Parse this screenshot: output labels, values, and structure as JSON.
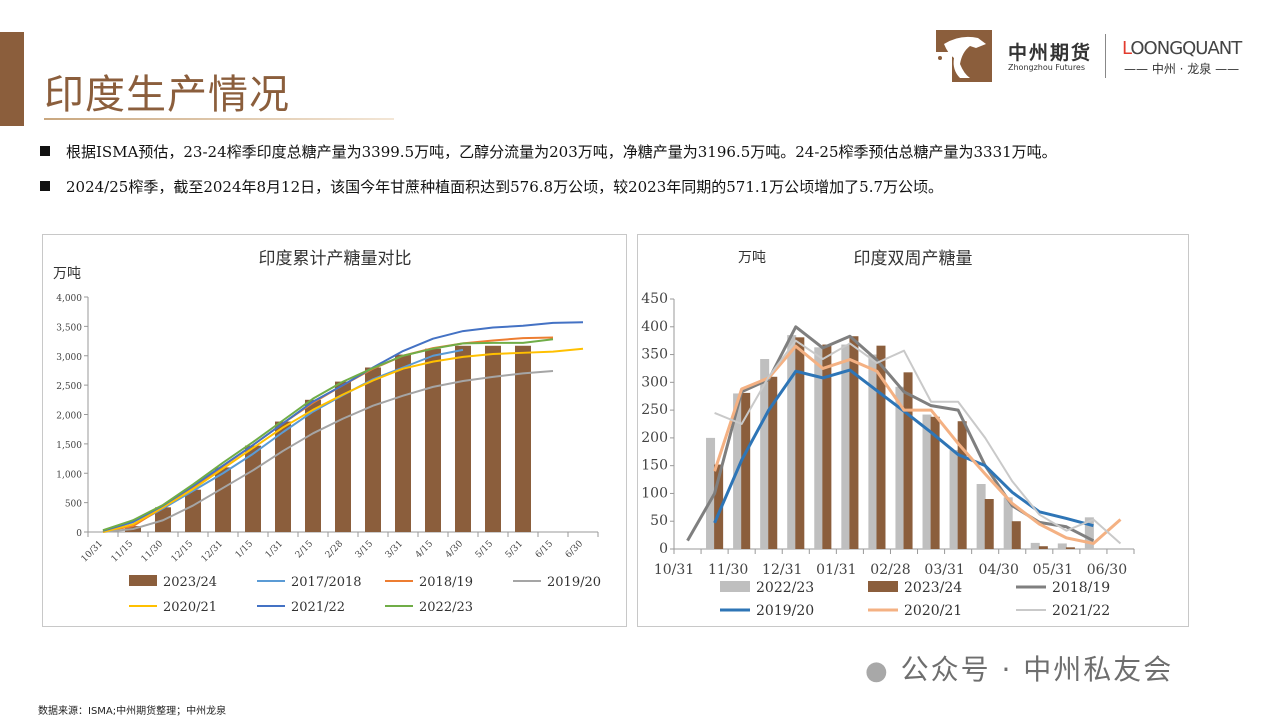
{
  "header": {
    "title": "印度生产情况",
    "logo_cn": "中州期货",
    "logo_en": "Zhongzhou Futures",
    "lq_name": "LOONGQUANT",
    "lq_sub": "—— 中州 · 龙泉 ——"
  },
  "bullets": [
    "根据ISMA预估，23-24榨季印度总糖产量为3399.5万吨，乙醇分流量为203万吨，净糖产量为3196.5万吨。24-25榨季预估总糖产量为3331万吨。",
    "2024/25榨季，截至2024年8月12日，该国今年甘蔗种植面积达到576.8万公顷，较2023年同期的571.1万公顷增加了5.7万公顷。"
  ],
  "footer": "数据来源：ISMA;中州期货整理；中州龙泉",
  "watermark": "公众号 · 中州私友会",
  "chart_data": [
    {
      "type": "bar+line",
      "title": "印度累计产糖量对比",
      "ylabel": "万吨",
      "ylim": [
        0,
        4000
      ],
      "yticks": [
        "0",
        "500",
        "1,000",
        "1,500",
        "2,000",
        "2,500",
        "3,000",
        "3,500",
        "4,000"
      ],
      "grid": false,
      "legend": "bottom",
      "categories": [
        "10/31",
        "11/15",
        "11/30",
        "12/15",
        "12/31",
        "1/15",
        "1/31",
        "2/15",
        "2/28",
        "3/15",
        "3/31",
        "4/15",
        "4/30",
        "5/15",
        "5/31",
        "6/15",
        "6/30"
      ],
      "series": [
        {
          "name": "2023/24",
          "kind": "bar",
          "color": "#8b5e3c",
          "values": [
            null,
            100,
            420,
            720,
            1100,
            1470,
            1880,
            2250,
            2560,
            2800,
            3020,
            3120,
            3170,
            3170,
            3170,
            null,
            null
          ]
        },
        {
          "name": "2017/2018",
          "kind": "line",
          "color": "#5b9bd5",
          "values": [
            30,
            120,
            400,
            700,
            1000,
            1330,
            1700,
            2050,
            2330,
            2600,
            2800,
            3000,
            3100,
            null,
            null,
            null,
            null
          ]
        },
        {
          "name": "2018/19",
          "kind": "line",
          "color": "#ed7d31",
          "values": [
            10,
            100,
            420,
            750,
            1120,
            1480,
            1850,
            2200,
            2500,
            2780,
            3000,
            3130,
            3210,
            3260,
            3300,
            3310,
            null
          ]
        },
        {
          "name": "2019/20",
          "kind": "line",
          "color": "#a5a5a5",
          "values": [
            0,
            50,
            200,
            450,
            750,
            1050,
            1380,
            1680,
            1930,
            2150,
            2320,
            2470,
            2570,
            2640,
            2700,
            2740,
            null
          ]
        },
        {
          "name": "2020/21",
          "kind": "line",
          "color": "#ffc000",
          "values": [
            0,
            130,
            420,
            730,
            1080,
            1430,
            1780,
            2080,
            2340,
            2580,
            2780,
            2900,
            2980,
            3030,
            3050,
            3070,
            3120
          ]
        },
        {
          "name": "2021/22",
          "kind": "line",
          "color": "#4472c4",
          "values": [
            20,
            170,
            450,
            780,
            1130,
            1480,
            1850,
            2220,
            2500,
            2800,
            3080,
            3290,
            3420,
            3480,
            3510,
            3560,
            3570
          ]
        },
        {
          "name": "2022/23",
          "kind": "line",
          "color": "#70ad47",
          "values": [
            30,
            200,
            460,
            810,
            1180,
            1530,
            1900,
            2270,
            2560,
            2790,
            3000,
            3120,
            3210,
            3220,
            3220,
            3280,
            null
          ]
        }
      ]
    },
    {
      "type": "bar+line",
      "title": "印度双周产糖量",
      "ylabel": "万吨",
      "ylim": [
        0,
        450
      ],
      "yticks": [
        "0",
        "50",
        "100",
        "150",
        "200",
        "250",
        "300",
        "350",
        "400",
        "450"
      ],
      "grid": false,
      "legend": "bottom",
      "xticks": [
        "10/31",
        "11/30",
        "12/31",
        "01/31",
        "02/28",
        "03/31",
        "04/30",
        "05/31",
        "06/30"
      ],
      "series": [
        {
          "name": "2022/23",
          "kind": "bar",
          "color": "#bfbfbf",
          "values": [
            null,
            200,
            280,
            342,
            385,
            363,
            368,
            350,
            292,
            242,
            178,
            117,
            93,
            11,
            10,
            57,
            null
          ]
        },
        {
          "name": "2023/24",
          "kind": "bar",
          "color": "#8b5e3c",
          "values": [
            null,
            152,
            281,
            310,
            381,
            368,
            383,
            366,
            318,
            238,
            230,
            90,
            50,
            5,
            3,
            null,
            null
          ]
        },
        {
          "name": "2018/19",
          "kind": "line",
          "color": "#7f7f7f",
          "width": 3,
          "values": [
            15,
            100,
            283,
            305,
            400,
            362,
            383,
            340,
            283,
            258,
            250,
            150,
            78,
            48,
            40,
            15,
            null
          ]
        },
        {
          "name": "2019/20",
          "kind": "line",
          "color": "#2e75b6",
          "width": 3,
          "values": [
            null,
            47,
            160,
            250,
            320,
            308,
            322,
            285,
            248,
            210,
            170,
            150,
            102,
            67,
            55,
            42,
            null
          ]
        },
        {
          "name": "2020/21",
          "kind": "line",
          "color": "#f4b183",
          "width": 3,
          "values": [
            null,
            140,
            288,
            308,
            365,
            325,
            341,
            320,
            250,
            250,
            190,
            135,
            82,
            45,
            20,
            10,
            53
          ]
        },
        {
          "name": "2021/22",
          "kind": "line",
          "color": "#c9c9c9",
          "width": 2,
          "values": [
            null,
            245,
            225,
            310,
            375,
            342,
            370,
            335,
            357,
            265,
            265,
            200,
            122,
            62,
            33,
            53,
            10
          ]
        }
      ]
    }
  ]
}
